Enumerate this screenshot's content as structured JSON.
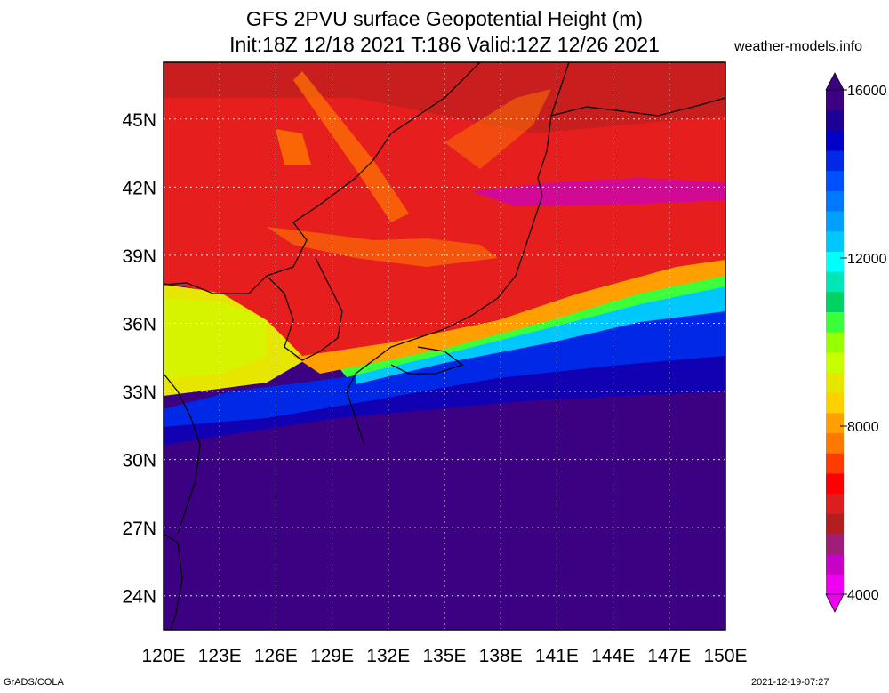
{
  "title": {
    "line1": "GFS 2PVU surface Geopotential Height (m)",
    "line2": "Init:18Z 12/18 2021 T:186 Valid:12Z 12/26 2021"
  },
  "site": "weather-models.info",
  "footer": {
    "left": "GrADS/COLA",
    "right": "2021-12-19-07:27"
  },
  "map": {
    "lon_range": [
      120,
      150
    ],
    "lat_range": [
      22.5,
      47.5
    ],
    "lat_ticks": [
      "45N",
      "42N",
      "39N",
      "36N",
      "33N",
      "30N",
      "27N",
      "24N"
    ],
    "lon_ticks": [
      "120E",
      "123E",
      "126E",
      "129E",
      "132E",
      "135E",
      "138E",
      "141E",
      "144E",
      "147E",
      "150E"
    ],
    "grid": true
  },
  "colorbar": {
    "labels": [
      "16000",
      "12000",
      "8000",
      "4000"
    ],
    "colors": [
      "#f000f0",
      "#c800c8",
      "#a01e78",
      "#b41e1e",
      "#dc1e1e",
      "#ff0000",
      "#ff3c00",
      "#ff7800",
      "#ffa000",
      "#ffd000",
      "#e6e600",
      "#c8ff00",
      "#96ff00",
      "#3cff3c",
      "#00d264",
      "#00e6b4",
      "#00ffff",
      "#00c8ff",
      "#00a0ff",
      "#0078ff",
      "#0050ff",
      "#0028e6",
      "#0000c8",
      "#1e0096",
      "#3c0082"
    ]
  },
  "colors": {
    "background_dark": "#3c0082",
    "blue": "#0028e6",
    "red": "#e61e1e",
    "yellow": "#e6e600"
  }
}
